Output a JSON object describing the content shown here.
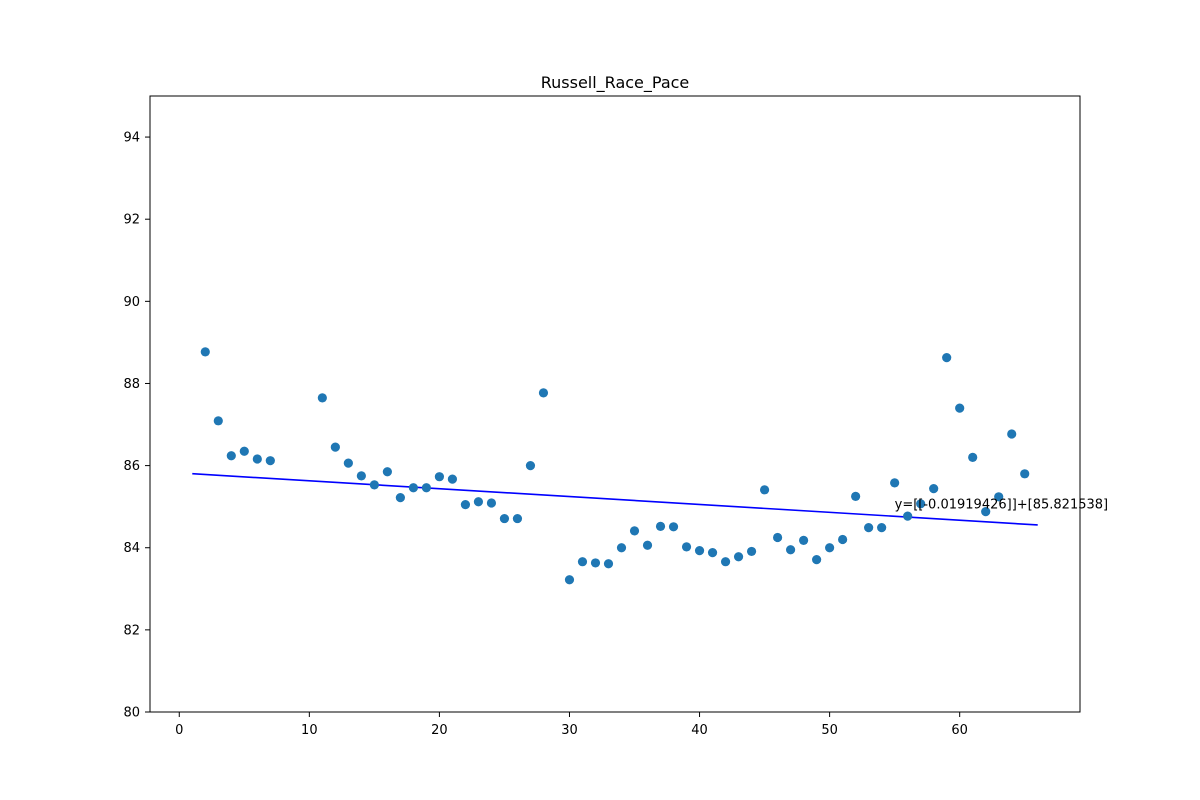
{
  "chart_data": {
    "type": "scatter",
    "title": "Russell_Race_Pace",
    "xlabel": "",
    "ylabel": "",
    "xlim": [
      -2.25,
      69.25
    ],
    "ylim": [
      80,
      95
    ],
    "xticks": [
      0,
      10,
      20,
      30,
      40,
      50,
      60
    ],
    "yticks": [
      80,
      82,
      84,
      86,
      88,
      90,
      92,
      94
    ],
    "grid": false,
    "legend": "none",
    "series": [
      {
        "kind": "scatter",
        "color": "#1f77b4",
        "x": [
          2,
          3,
          4,
          5,
          6,
          7,
          11,
          12,
          13,
          14,
          15,
          16,
          17,
          18,
          19,
          20,
          21,
          22,
          23,
          24,
          25,
          26,
          27,
          28,
          30,
          31,
          32,
          33,
          34,
          35,
          36,
          37,
          38,
          39,
          40,
          41,
          42,
          43,
          44,
          45,
          46,
          47,
          48,
          49,
          50,
          51,
          52,
          53,
          54,
          55,
          56,
          57,
          58,
          59,
          60,
          61,
          62,
          63,
          64,
          65
        ],
        "y": [
          88.77,
          87.09,
          86.24,
          86.35,
          86.16,
          86.12,
          87.65,
          86.45,
          86.06,
          85.75,
          85.53,
          85.85,
          85.22,
          85.46,
          85.46,
          85.73,
          85.67,
          85.05,
          85.12,
          85.09,
          84.71,
          84.71,
          86.0,
          87.77,
          83.22,
          83.66,
          83.63,
          83.61,
          84.0,
          84.41,
          84.06,
          84.52,
          84.51,
          84.02,
          83.93,
          83.88,
          83.66,
          83.78,
          83.91,
          85.41,
          84.25,
          83.95,
          84.18,
          83.71,
          84.0,
          84.2,
          85.25,
          84.49,
          84.49,
          85.58,
          84.77,
          85.07,
          85.44,
          88.63,
          87.4,
          86.2,
          84.88,
          85.24,
          86.77,
          85.8
        ]
      },
      {
        "kind": "line",
        "color": "#0000ff",
        "x": [
          1,
          66
        ],
        "y": [
          85.80234374,
          84.55471684
        ]
      }
    ],
    "annotations": [
      {
        "text": "y=[[-0.01919426]]+[85.821538]",
        "x": 55,
        "y": 84.95
      }
    ]
  }
}
